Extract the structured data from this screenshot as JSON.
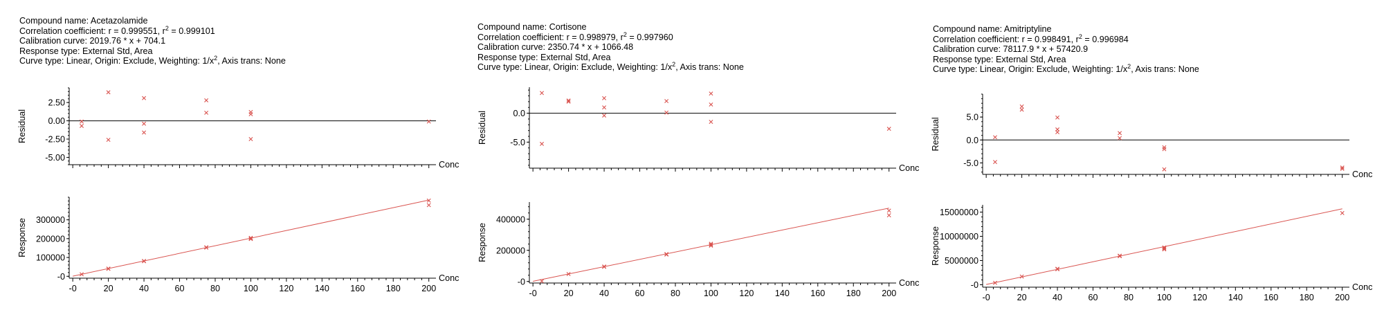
{
  "labels": {
    "compound_prefix": "Compound name: ",
    "correlation_prefix": "Correlation coefficient: r = ",
    "r2_sep": ", r",
    "r2_exp": "2",
    "r2_eq": " = ",
    "calibration_prefix": "Calibration curve: ",
    "response_type": "Response type: External Std, Area",
    "curve_type_pre": "Curve type: Linear, Origin: Exclude, Weighting: 1/x",
    "curve_type_exp": "2",
    "curve_type_post": ", Axis trans: None",
    "residual_axis": "Residual",
    "response_axis": "Response",
    "conc_axis": "Conc"
  },
  "colors": {
    "marker": "#d9534f",
    "fit_line": "#d9534f",
    "zero_line": "#000000",
    "axis": "#000000"
  },
  "chart_data": [
    {
      "type": "scatter",
      "compound": "Acetazolamide",
      "r": "0.999551",
      "r2": "0.999101",
      "calibration_curve": "2019.76 * x + 704.1",
      "fit": {
        "slope": 2019.76,
        "intercept": 704.1
      },
      "x_ticks": [
        "-0",
        "20",
        "40",
        "60",
        "80",
        "100",
        "120",
        "140",
        "160",
        "180",
        "200"
      ],
      "xlim": [
        -2,
        204
      ],
      "residual": {
        "ylim": [
          -6,
          4.5
        ],
        "ticks": [
          2.5,
          0,
          -2.5,
          -5
        ],
        "tick_labels": [
          "2.50",
          "0.00",
          "-2.50",
          "-5.00"
        ],
        "points": [
          [
            5,
            -0.1
          ],
          [
            5,
            -0.7
          ],
          [
            20,
            3.9
          ],
          [
            20,
            -2.6
          ],
          [
            40,
            3.1
          ],
          [
            40,
            -0.4
          ],
          [
            40,
            -1.6
          ],
          [
            75,
            2.8
          ],
          [
            75,
            1.1
          ],
          [
            100,
            1.2
          ],
          [
            100,
            0.9
          ],
          [
            100,
            -2.5
          ],
          [
            200,
            -0.1
          ]
        ]
      },
      "response": {
        "ylim": [
          -10000,
          420000
        ],
        "ticks": [
          300000,
          200000,
          100000,
          0
        ],
        "tick_labels": [
          "300000",
          "200000",
          "100000",
          "-0"
        ],
        "points": [
          [
            5,
            10800
          ],
          [
            20,
            41000
          ],
          [
            20,
            39500
          ],
          [
            40,
            81500
          ],
          [
            40,
            80000
          ],
          [
            75,
            152000
          ],
          [
            75,
            154000
          ],
          [
            100,
            204000
          ],
          [
            100,
            200000
          ],
          [
            100,
            198000
          ],
          [
            200,
            402000
          ],
          [
            200,
            378000
          ]
        ]
      }
    },
    {
      "type": "scatter",
      "compound": "Cortisone",
      "r": "0.998979",
      "r2": "0.997960",
      "calibration_curve": "2350.74 * x + 1066.48",
      "fit": {
        "slope": 2350.74,
        "intercept": 1066.48
      },
      "x_ticks": [
        "-0",
        "20",
        "40",
        "60",
        "80",
        "100",
        "120",
        "140",
        "160",
        "180",
        "200"
      ],
      "xlim": [
        -2,
        204
      ],
      "residual": {
        "ylim": [
          -9.5,
          4.5
        ],
        "ticks": [
          0,
          -5
        ],
        "tick_labels": [
          "0.0",
          "-5.0"
        ],
        "points": [
          [
            5,
            3.5
          ],
          [
            5,
            -5.3
          ],
          [
            20,
            2.2
          ],
          [
            20,
            2.0
          ],
          [
            40,
            2.6
          ],
          [
            40,
            1.0
          ],
          [
            40,
            -0.4
          ],
          [
            75,
            2.1
          ],
          [
            75,
            0.1
          ],
          [
            100,
            3.4
          ],
          [
            100,
            1.5
          ],
          [
            100,
            -1.5
          ],
          [
            200,
            -2.7
          ]
        ]
      },
      "response": {
        "ylim": [
          -10000,
          510000
        ],
        "ticks": [
          400000,
          200000,
          0
        ],
        "tick_labels": [
          "400000",
          "200000",
          "-0"
        ],
        "points": [
          [
            5,
            2000
          ],
          [
            20,
            48000
          ],
          [
            40,
            96000
          ],
          [
            40,
            94000
          ],
          [
            75,
            176000
          ],
          [
            75,
            173000
          ],
          [
            100,
            242000
          ],
          [
            100,
            235000
          ],
          [
            100,
            230000
          ],
          [
            200,
            455000
          ],
          [
            200,
            425000
          ]
        ]
      }
    },
    {
      "type": "scatter",
      "compound": "Amitriptyline",
      "r": "0.998491",
      "r2": "0.996984",
      "calibration_curve": "78117.9 * x + 57420.9",
      "fit": {
        "slope": 78117.9,
        "intercept": 57420.9
      },
      "x_ticks": [
        "-0",
        "20",
        "40",
        "60",
        "80",
        "100",
        "120",
        "140",
        "160",
        "180",
        "200"
      ],
      "xlim": [
        -2,
        204
      ],
      "residual": {
        "ylim": [
          -7.5,
          10
        ],
        "ticks": [
          5,
          0,
          -5
        ],
        "tick_labels": [
          "5.0",
          "0.0",
          "-5.0"
        ],
        "points": [
          [
            5,
            0.6
          ],
          [
            5,
            -4.8
          ],
          [
            20,
            7.3
          ],
          [
            20,
            6.6
          ],
          [
            40,
            4.9
          ],
          [
            40,
            2.3
          ],
          [
            40,
            1.7
          ],
          [
            75,
            1.5
          ],
          [
            75,
            0.4
          ],
          [
            100,
            -1.6
          ],
          [
            100,
            -2.0
          ],
          [
            100,
            -6.4
          ],
          [
            200,
            -6.0
          ],
          [
            200,
            -6.3
          ]
        ]
      },
      "response": {
        "ylim": [
          -500000,
          16500000
        ],
        "ticks": [
          15000000,
          10000000,
          5000000,
          0
        ],
        "tick_labels": [
          "15000000",
          "10000000",
          "5000000",
          "-0"
        ],
        "points": [
          [
            5,
            400000
          ],
          [
            20,
            1700000
          ],
          [
            40,
            3300000
          ],
          [
            40,
            3200000
          ],
          [
            75,
            6000000
          ],
          [
            75,
            5900000
          ],
          [
            100,
            7700000
          ],
          [
            100,
            7500000
          ],
          [
            100,
            7300000
          ],
          [
            200,
            14800000
          ]
        ]
      }
    }
  ]
}
